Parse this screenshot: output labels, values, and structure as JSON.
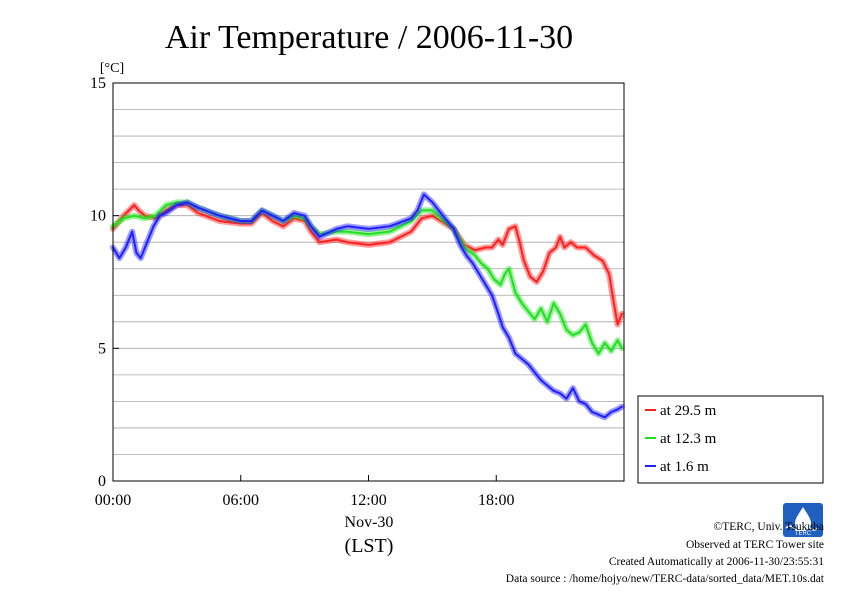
{
  "chart_data": {
    "type": "line",
    "title": "Air Temperature / 2006-11-30",
    "ylabel": "[°C]",
    "xlabel": "(LST)",
    "date_label": "Nov-30",
    "ylim": [
      0,
      15
    ],
    "xlim": [
      0,
      24
    ],
    "yticks": [
      0,
      5,
      10,
      15
    ],
    "xticks": [
      {
        "v": 0,
        "label": "00:00"
      },
      {
        "v": 6,
        "label": "06:00"
      },
      {
        "v": 12,
        "label": "12:00"
      },
      {
        "v": 18,
        "label": "18:00"
      }
    ],
    "grid": true,
    "legend_position": "right-bottom",
    "series": [
      {
        "name": "at 29.5 m",
        "color": "#ff2020",
        "x": [
          0.0,
          0.5,
          1.0,
          1.2,
          1.5,
          2.0,
          2.5,
          3.0,
          3.5,
          4.0,
          5.0,
          6.0,
          6.5,
          7.0,
          7.5,
          8.0,
          8.5,
          9.0,
          9.3,
          9.7,
          10.5,
          11.0,
          12.0,
          13.0,
          14.0,
          14.5,
          15.0,
          16.0,
          16.5,
          17.0,
          17.5,
          17.8,
          18.1,
          18.3,
          18.6,
          18.9,
          19.1,
          19.3,
          19.6,
          19.9,
          20.2,
          20.5,
          20.8,
          21.0,
          21.2,
          21.5,
          21.8,
          22.2,
          22.6,
          23.0,
          23.3,
          23.5,
          23.7,
          23.9
        ],
        "values": [
          9.5,
          10.0,
          10.4,
          10.2,
          10.0,
          9.9,
          10.2,
          10.4,
          10.4,
          10.1,
          9.8,
          9.7,
          9.7,
          10.1,
          9.8,
          9.6,
          9.9,
          9.8,
          9.4,
          9.0,
          9.1,
          9.0,
          8.9,
          9.0,
          9.4,
          9.9,
          10.0,
          9.5,
          8.9,
          8.7,
          8.8,
          8.8,
          9.1,
          8.9,
          9.5,
          9.6,
          9.0,
          8.3,
          7.7,
          7.5,
          7.9,
          8.6,
          8.8,
          9.2,
          8.8,
          9.0,
          8.8,
          8.8,
          8.5,
          8.3,
          7.8,
          6.8,
          5.9,
          6.3
        ]
      },
      {
        "name": "at 12.3 m",
        "color": "#20e020",
        "x": [
          0.0,
          0.5,
          1.0,
          1.5,
          2.0,
          2.5,
          3.0,
          3.5,
          4.0,
          5.0,
          6.0,
          6.5,
          7.0,
          7.5,
          8.0,
          8.5,
          9.0,
          9.3,
          9.7,
          10.5,
          11.0,
          12.0,
          13.0,
          14.0,
          14.5,
          15.0,
          16.0,
          16.5,
          17.0,
          17.3,
          17.6,
          17.9,
          18.2,
          18.4,
          18.6,
          18.9,
          19.2,
          19.5,
          19.8,
          20.1,
          20.4,
          20.7,
          21.0,
          21.3,
          21.6,
          21.9,
          22.2,
          22.5,
          22.8,
          23.1,
          23.4,
          23.7,
          23.9
        ],
        "values": [
          9.6,
          9.9,
          10.0,
          9.9,
          10.0,
          10.4,
          10.5,
          10.5,
          10.3,
          10.0,
          9.8,
          9.8,
          10.2,
          10.0,
          9.8,
          10.0,
          9.9,
          9.6,
          9.3,
          9.4,
          9.4,
          9.3,
          9.4,
          9.8,
          10.2,
          10.2,
          9.5,
          8.8,
          8.5,
          8.2,
          8.0,
          7.6,
          7.4,
          7.8,
          8.0,
          7.1,
          6.7,
          6.4,
          6.1,
          6.5,
          6.0,
          6.7,
          6.3,
          5.7,
          5.5,
          5.6,
          5.9,
          5.2,
          4.8,
          5.2,
          4.9,
          5.3,
          5.0
        ]
      },
      {
        "name": "at 1.6 m",
        "color": "#2020ff",
        "x": [
          0.0,
          0.3,
          0.6,
          0.9,
          1.1,
          1.3,
          1.6,
          1.9,
          2.2,
          2.5,
          3.0,
          3.5,
          4.0,
          5.0,
          6.0,
          6.5,
          7.0,
          7.5,
          8.0,
          8.5,
          9.0,
          9.3,
          9.7,
          10.5,
          11.0,
          12.0,
          13.0,
          14.0,
          14.3,
          14.6,
          15.0,
          15.5,
          16.0,
          16.3,
          16.6,
          16.9,
          17.2,
          17.5,
          17.8,
          18.1,
          18.3,
          18.6,
          18.9,
          19.2,
          19.5,
          19.8,
          20.1,
          20.4,
          20.7,
          21.0,
          21.3,
          21.6,
          21.9,
          22.2,
          22.5,
          22.8,
          23.1,
          23.4,
          23.7,
          23.9
        ],
        "values": [
          8.8,
          8.4,
          8.8,
          9.4,
          8.6,
          8.4,
          9.0,
          9.6,
          10.0,
          10.1,
          10.4,
          10.5,
          10.3,
          10.0,
          9.8,
          9.8,
          10.2,
          10.0,
          9.8,
          10.1,
          10.0,
          9.6,
          9.2,
          9.5,
          9.6,
          9.5,
          9.6,
          9.9,
          10.2,
          10.8,
          10.5,
          10.0,
          9.5,
          8.9,
          8.5,
          8.2,
          7.8,
          7.4,
          7.0,
          6.3,
          5.8,
          5.4,
          4.8,
          4.6,
          4.4,
          4.1,
          3.8,
          3.6,
          3.4,
          3.3,
          3.1,
          3.5,
          3.0,
          2.9,
          2.6,
          2.5,
          2.4,
          2.6,
          2.7,
          2.8
        ]
      }
    ]
  },
  "footer": {
    "copyright": "©TERC, Univ. Tsukuba",
    "observed": "Observed at TERC Tower site",
    "created": "Created Automatically at 2006-11-30/23:55:31",
    "source": "Data source : /home/hojyo/new/TERC-data/sorted_data/MET.10s.dat"
  },
  "logo": {
    "text": "TERC"
  }
}
